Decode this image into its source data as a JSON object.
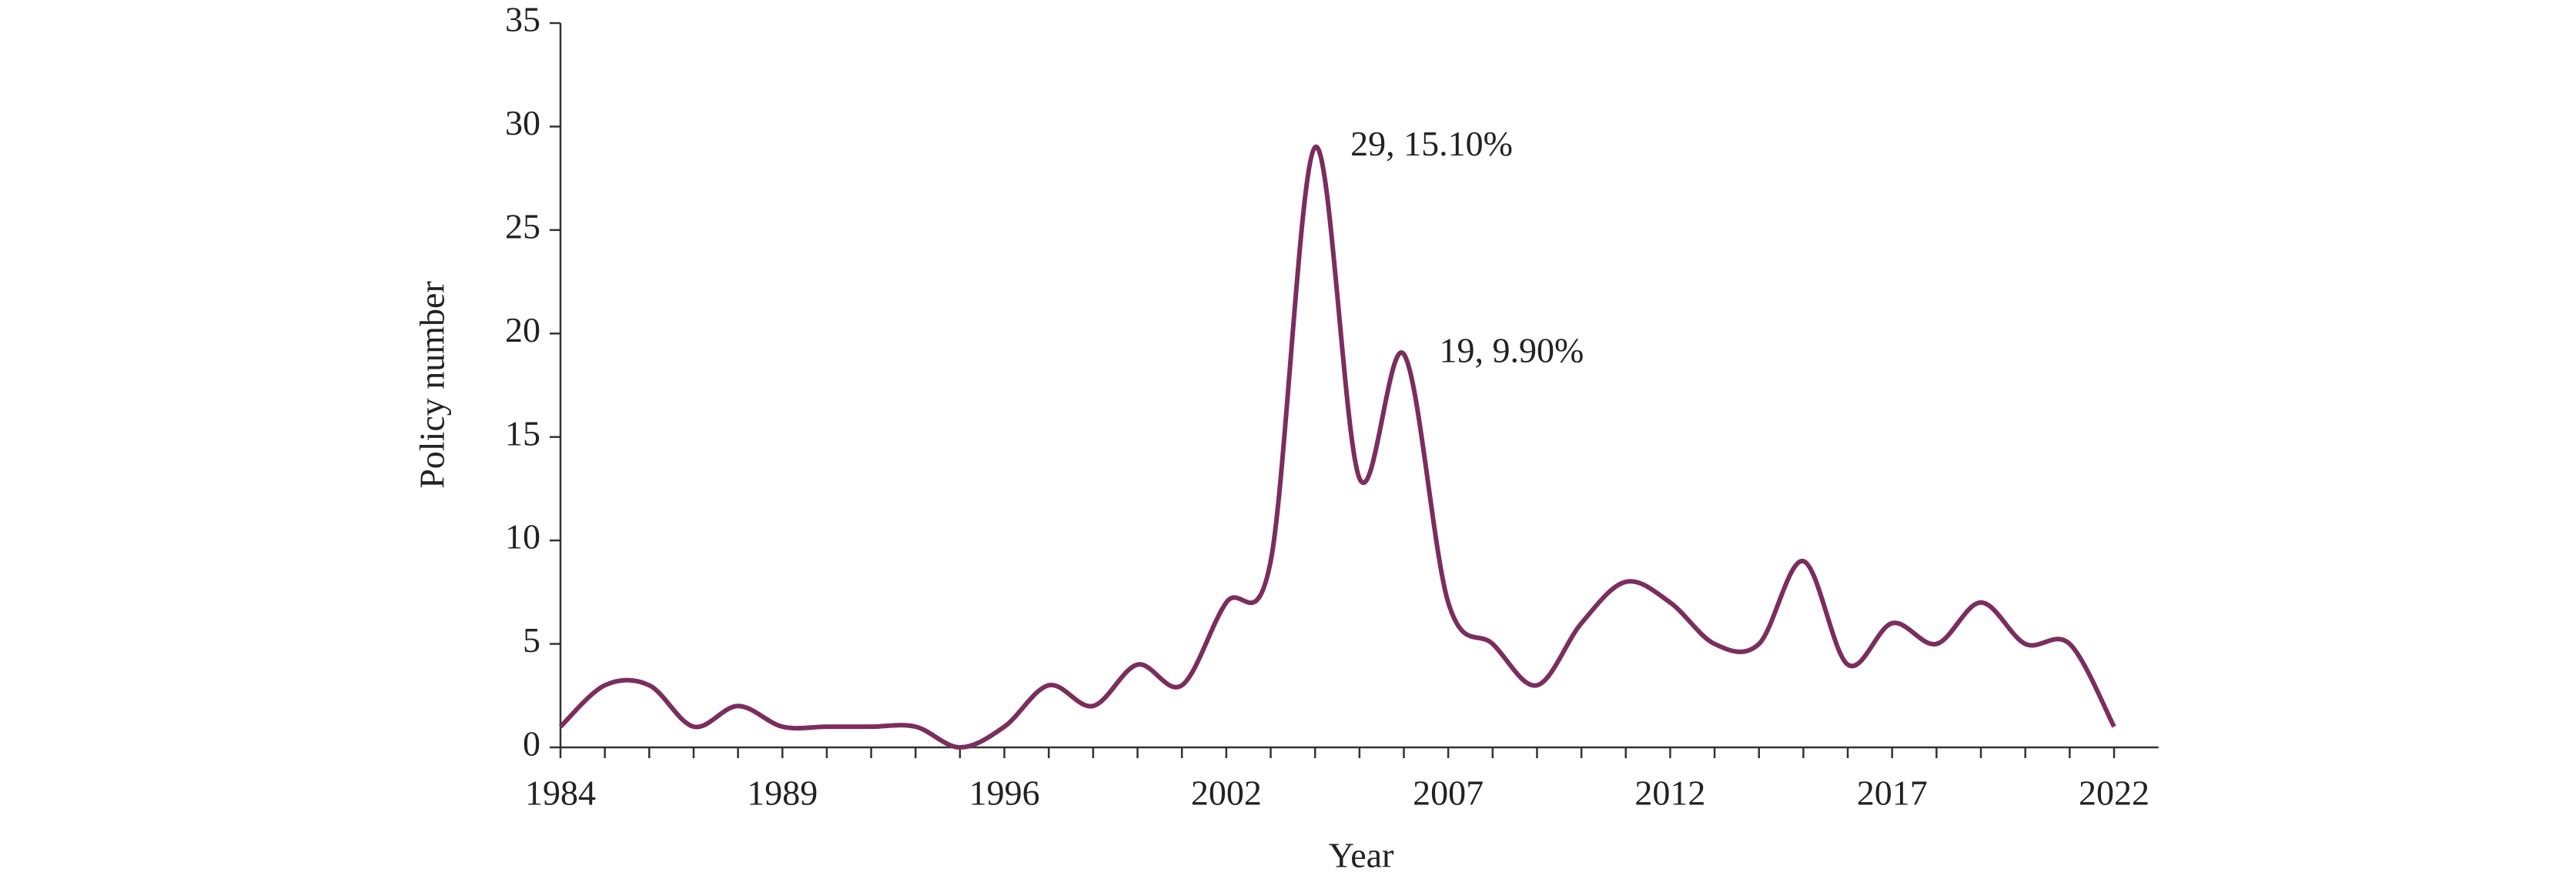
{
  "chart_data": {
    "type": "line",
    "x_label": "Year",
    "y_label": "Policy number",
    "categories": [
      "1984",
      null,
      null,
      null,
      null,
      "1989",
      null,
      null,
      null,
      null,
      "1996",
      null,
      null,
      null,
      null,
      "2002",
      null,
      null,
      null,
      null,
      "2007",
      null,
      null,
      null,
      null,
      "2012",
      null,
      null,
      null,
      null,
      "2017",
      null,
      null,
      null,
      null,
      "2022"
    ],
    "series": [
      {
        "color": "#7b2d5e",
        "values": [
          1,
          3,
          3,
          1,
          2,
          1,
          1,
          1,
          1,
          0,
          1,
          3,
          2,
          4,
          3,
          7,
          9,
          29,
          13,
          19,
          7,
          5,
          3,
          6,
          8,
          7,
          5,
          5,
          9,
          4,
          6,
          5,
          7,
          5,
          5,
          1
        ],
        "value_labels": [
          null,
          null,
          null,
          null,
          null,
          null,
          null,
          null,
          null,
          null,
          null,
          null,
          null,
          null,
          null,
          null,
          null,
          "29, 15.10%",
          null,
          "19, 9.90%",
          null,
          null,
          null,
          null,
          null,
          null,
          null,
          null,
          null,
          null,
          null,
          null,
          null,
          null,
          null,
          null
        ]
      }
    ],
    "ylim": [
      0,
      35
    ],
    "yticks": [
      0,
      5,
      10,
      15,
      20,
      25,
      30,
      35
    ],
    "smooth": true
  }
}
